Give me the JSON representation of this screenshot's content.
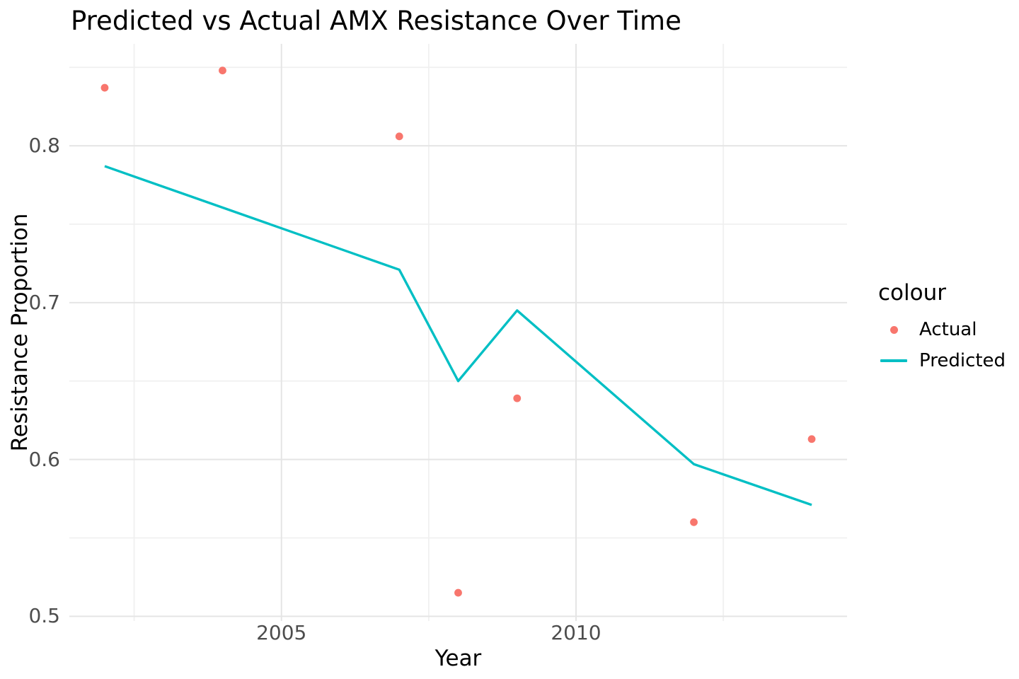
{
  "chart_data": {
    "type": "line",
    "title": "Predicted vs Actual AMX Resistance Over Time",
    "xlabel": "Year",
    "ylabel": "Resistance Proportion",
    "xlim": [
      2001.4,
      2014.6
    ],
    "ylim": [
      0.497,
      0.865
    ],
    "x_major_ticks": [
      2005,
      2010
    ],
    "x_minor_gridlines": [
      2002.5,
      2007.5,
      2012.5
    ],
    "y_major_ticks": [
      0.5,
      0.6,
      0.7,
      0.8
    ],
    "y_minor_gridlines": [
      0.55,
      0.65,
      0.75,
      0.85
    ],
    "grid": "on",
    "legend": {
      "title": "colour",
      "position": "right",
      "entries": [
        {
          "label": "Actual",
          "type": "point",
          "color": "#F8766D"
        },
        {
          "label": "Predicted",
          "type": "line",
          "color": "#00BFC4"
        }
      ]
    },
    "series": [
      {
        "name": "Actual",
        "geom": "points",
        "color": "#F8766D",
        "points": [
          {
            "x": 2002,
            "y": 0.837
          },
          {
            "x": 2004,
            "y": 0.848
          },
          {
            "x": 2007,
            "y": 0.806
          },
          {
            "x": 2008,
            "y": 0.515
          },
          {
            "x": 2009,
            "y": 0.639
          },
          {
            "x": 2012,
            "y": 0.56
          },
          {
            "x": 2014,
            "y": 0.613
          }
        ]
      },
      {
        "name": "Predicted",
        "geom": "line",
        "color": "#00BFC4",
        "points": [
          {
            "x": 2002,
            "y": 0.787
          },
          {
            "x": 2007,
            "y": 0.721
          },
          {
            "x": 2008,
            "y": 0.65
          },
          {
            "x": 2009,
            "y": 0.695
          },
          {
            "x": 2012,
            "y": 0.597
          },
          {
            "x": 2014,
            "y": 0.571
          }
        ]
      }
    ],
    "colors": {
      "tick_text": "#4D4D4D",
      "text": "#000000",
      "grid_major": "#E5E5E5",
      "grid_minor": "#F0F0F0",
      "background": "#FFFFFF"
    }
  }
}
